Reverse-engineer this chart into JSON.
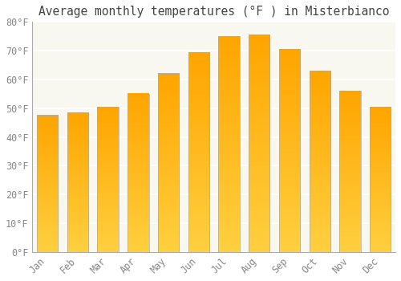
{
  "title": "Average monthly temperatures (°F ) in Misterbianco",
  "months": [
    "Jan",
    "Feb",
    "Mar",
    "Apr",
    "May",
    "Jun",
    "Jul",
    "Aug",
    "Sep",
    "Oct",
    "Nov",
    "Dec"
  ],
  "values": [
    47.5,
    48.5,
    50.5,
    55.0,
    62.0,
    69.5,
    75.0,
    75.5,
    70.5,
    63.0,
    56.0,
    50.5
  ],
  "bar_color_main": "#FFA500",
  "bar_color_light": "#FFD700",
  "bar_edge_color": "#888888",
  "ylim": [
    0,
    80
  ],
  "ytick_step": 10,
  "background_color": "#FFFFFF",
  "plot_bg_color": "#F8F8F0",
  "grid_color": "#FFFFFF",
  "title_fontsize": 10.5,
  "tick_fontsize": 8.5,
  "tick_color": "#888888",
  "title_color": "#444444",
  "font_family": "monospace"
}
